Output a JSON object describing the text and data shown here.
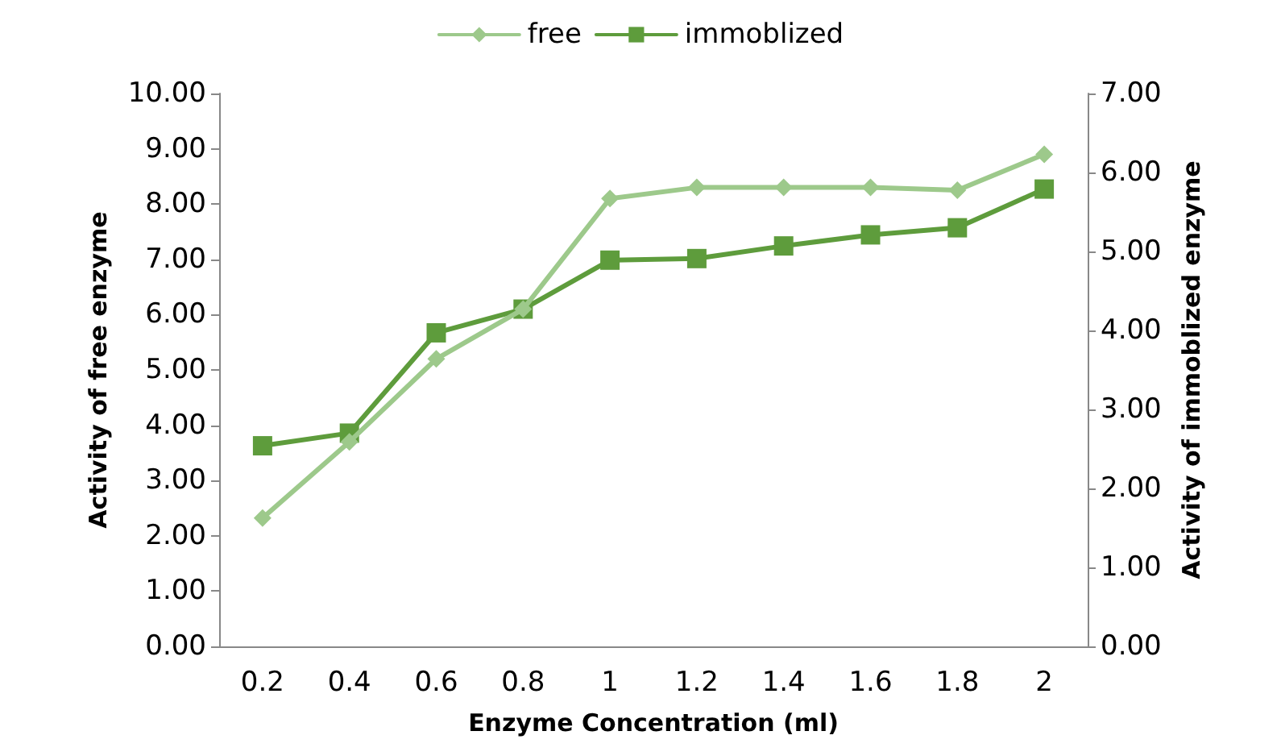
{
  "chart_data": {
    "type": "line",
    "xlabel": "Enzyme Concentration (ml)",
    "ylabel": "Activity of free enzyme",
    "y2label": "Activity of immoblized enzyme",
    "categories": [
      "0.2",
      "0.4",
      "0.6",
      "0.8",
      "1",
      "1.2",
      "1.4",
      "1.6",
      "1.8",
      "2"
    ],
    "series": [
      {
        "name": "free",
        "color": "#9dc98b",
        "marker": "diamond",
        "values": [
          2.32,
          3.7,
          5.2,
          6.1,
          8.1,
          8.3,
          8.3,
          8.3,
          8.25,
          8.9
        ]
      },
      {
        "name": "immoblized",
        "color": "#5e9c3c",
        "marker": "square",
        "axis": "y2",
        "values": [
          2.54,
          2.7,
          3.97,
          4.27,
          4.89,
          4.91,
          5.07,
          5.21,
          5.3,
          5.79
        ]
      }
    ],
    "ylim": [
      0,
      10
    ],
    "yticks": [
      {
        "value": 0,
        "label": "0.00"
      },
      {
        "value": 1,
        "label": "1.00"
      },
      {
        "value": 2,
        "label": "2.00"
      },
      {
        "value": 3,
        "label": "3.00"
      },
      {
        "value": 4,
        "label": "4.00"
      },
      {
        "value": 5,
        "label": "5.00"
      },
      {
        "value": 6,
        "label": "6.00"
      },
      {
        "value": 7,
        "label": "7.00"
      },
      {
        "value": 8,
        "label": "8.00"
      },
      {
        "value": 9,
        "label": "9.00"
      },
      {
        "value": 10,
        "label": "10.00"
      }
    ],
    "y2lim": [
      0,
      7
    ],
    "y2ticks": [
      {
        "value": 0,
        "label": "0.00"
      },
      {
        "value": 1,
        "label": "1.00"
      },
      {
        "value": 2,
        "label": "2.00"
      },
      {
        "value": 3,
        "label": "3.00"
      },
      {
        "value": 4,
        "label": "4.00"
      },
      {
        "value": 5,
        "label": "5.00"
      },
      {
        "value": 6,
        "label": "6.00"
      },
      {
        "value": 7,
        "label": "7.00"
      }
    ],
    "legend": "top",
    "grid": false,
    "line_style": "solid"
  }
}
